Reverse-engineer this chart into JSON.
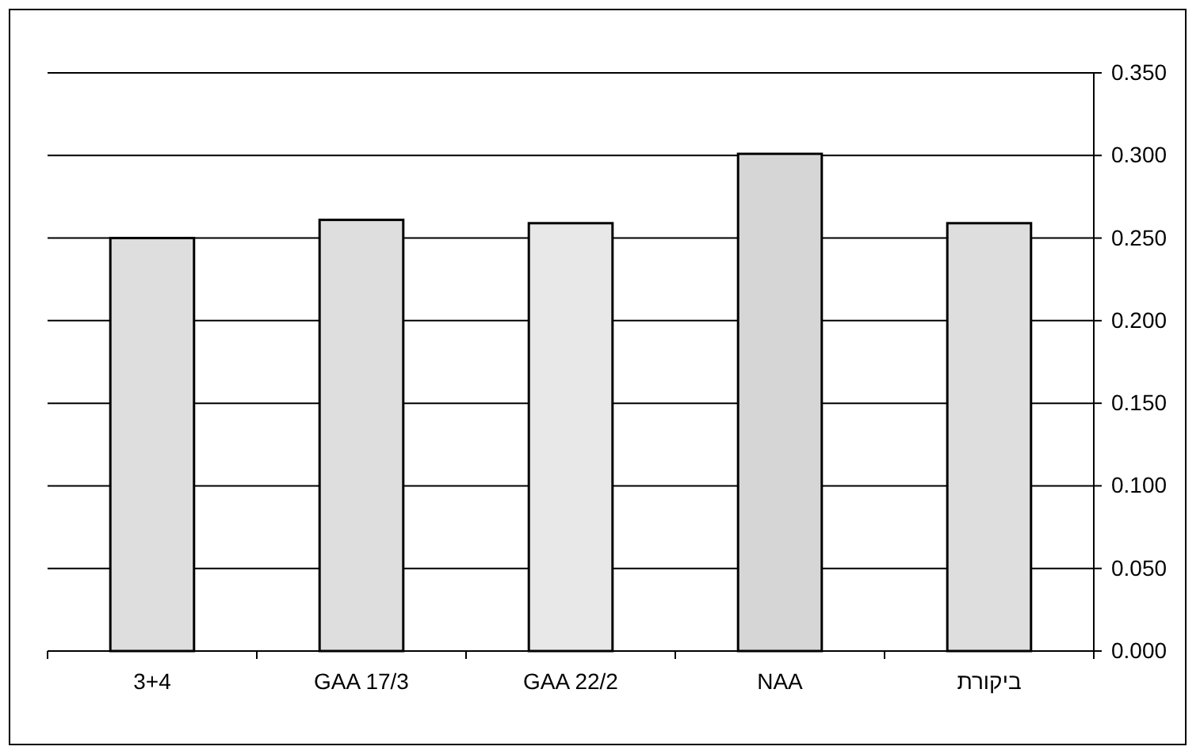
{
  "chart_data": {
    "type": "bar",
    "categories": [
      "3+4",
      "GAA 17/3",
      "GAA 22/2",
      "NAA",
      "ביקורת"
    ],
    "values": [
      0.25,
      0.261,
      0.259,
      0.301,
      0.259
    ],
    "colors": [
      "#dedede",
      "#dedede",
      "#e8e8e8",
      "#d6d6d6",
      "#dedede"
    ],
    "ylim": [
      0,
      0.35
    ],
    "yticks": [
      {
        "value": 0,
        "label": "0.000"
      },
      {
        "value": 0.05,
        "label": "0.050"
      },
      {
        "value": 0.1,
        "label": "0.100"
      },
      {
        "value": 0.15,
        "label": "0.150"
      },
      {
        "value": 0.2,
        "label": "0.200"
      },
      {
        "value": 0.25,
        "label": "0.250"
      },
      {
        "value": 0.3,
        "label": "0.300"
      },
      {
        "value": 0.35,
        "label": "0.350"
      }
    ],
    "grid": "y"
  }
}
